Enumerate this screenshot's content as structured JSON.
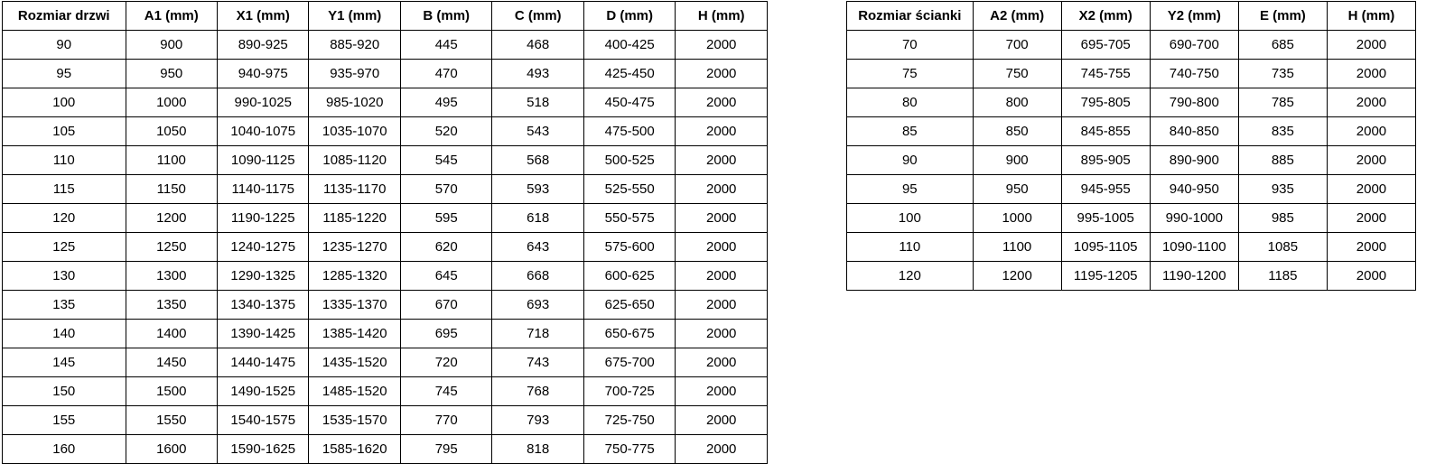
{
  "page": {
    "background_color": "#ffffff",
    "text_color": "#000000",
    "border_color": "#000000"
  },
  "tables": [
    {
      "name": "door-sizes",
      "headers": [
        "Rozmiar drzwi",
        "A1 (mm)",
        "X1 (mm)",
        "Y1 (mm)",
        "B (mm)",
        "C (mm)",
        "D (mm)",
        "H (mm)"
      ],
      "rows": [
        [
          "90",
          "900",
          "890-925",
          "885-920",
          "445",
          "468",
          "400-425",
          "2000"
        ],
        [
          "95",
          "950",
          "940-975",
          "935-970",
          "470",
          "493",
          "425-450",
          "2000"
        ],
        [
          "100",
          "1000",
          "990-1025",
          "985-1020",
          "495",
          "518",
          "450-475",
          "2000"
        ],
        [
          "105",
          "1050",
          "1040-1075",
          "1035-1070",
          "520",
          "543",
          "475-500",
          "2000"
        ],
        [
          "110",
          "1100",
          "1090-1125",
          "1085-1120",
          "545",
          "568",
          "500-525",
          "2000"
        ],
        [
          "115",
          "1150",
          "1140-1175",
          "1135-1170",
          "570",
          "593",
          "525-550",
          "2000"
        ],
        [
          "120",
          "1200",
          "1190-1225",
          "1185-1220",
          "595",
          "618",
          "550-575",
          "2000"
        ],
        [
          "125",
          "1250",
          "1240-1275",
          "1235-1270",
          "620",
          "643",
          "575-600",
          "2000"
        ],
        [
          "130",
          "1300",
          "1290-1325",
          "1285-1320",
          "645",
          "668",
          "600-625",
          "2000"
        ],
        [
          "135",
          "1350",
          "1340-1375",
          "1335-1370",
          "670",
          "693",
          "625-650",
          "2000"
        ],
        [
          "140",
          "1400",
          "1390-1425",
          "1385-1420",
          "695",
          "718",
          "650-675",
          "2000"
        ],
        [
          "145",
          "1450",
          "1440-1475",
          "1435-1520",
          "720",
          "743",
          "675-700",
          "2000"
        ],
        [
          "150",
          "1500",
          "1490-1525",
          "1485-1520",
          "745",
          "768",
          "700-725",
          "2000"
        ],
        [
          "155",
          "1550",
          "1540-1575",
          "1535-1570",
          "770",
          "793",
          "725-750",
          "2000"
        ],
        [
          "160",
          "1600",
          "1590-1625",
          "1585-1620",
          "795",
          "818",
          "750-775",
          "2000"
        ]
      ]
    },
    {
      "name": "wall-sizes",
      "headers": [
        "Rozmiar ścianki",
        "A2 (mm)",
        "X2 (mm)",
        "Y2 (mm)",
        "E (mm)",
        "H (mm)"
      ],
      "rows": [
        [
          "70",
          "700",
          "695-705",
          "690-700",
          "685",
          "2000"
        ],
        [
          "75",
          "750",
          "745-755",
          "740-750",
          "735",
          "2000"
        ],
        [
          "80",
          "800",
          "795-805",
          "790-800",
          "785",
          "2000"
        ],
        [
          "85",
          "850",
          "845-855",
          "840-850",
          "835",
          "2000"
        ],
        [
          "90",
          "900",
          "895-905",
          "890-900",
          "885",
          "2000"
        ],
        [
          "95",
          "950",
          "945-955",
          "940-950",
          "935",
          "2000"
        ],
        [
          "100",
          "1000",
          "995-1005",
          "990-1000",
          "985",
          "2000"
        ],
        [
          "110",
          "1100",
          "1095-1105",
          "1090-1100",
          "1085",
          "2000"
        ],
        [
          "120",
          "1200",
          "1195-1205",
          "1190-1200",
          "1185",
          "2000"
        ]
      ]
    }
  ]
}
